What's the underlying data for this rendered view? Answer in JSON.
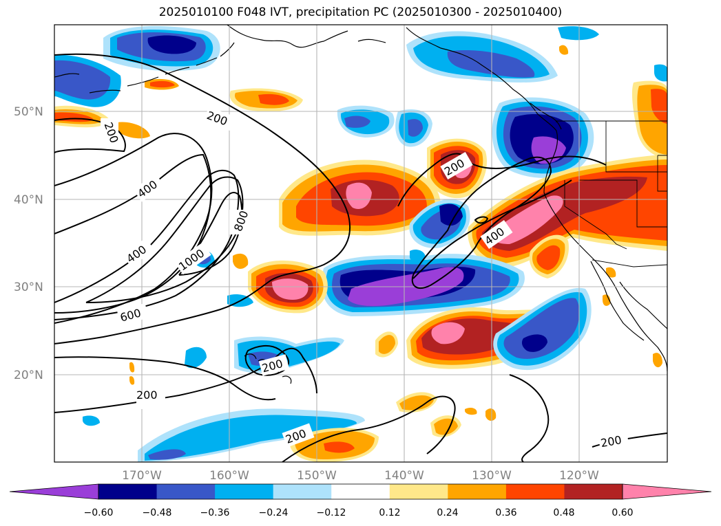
{
  "title": "2025010100 F048 IVT, precipitation PC (2025010300 - 2025010400)",
  "map": {
    "lat_labels": [
      "50°N",
      "40°N",
      "30°N",
      "20°N"
    ],
    "lon_labels": [
      "170°W",
      "160°W",
      "150°W",
      "140°W",
      "130°W",
      "120°W"
    ],
    "contour_labels": [
      "200",
      "200",
      "200",
      "400",
      "400",
      "600",
      "800",
      "1000",
      "200",
      "200",
      "200",
      "200",
      "400"
    ],
    "colors": {
      "neg_060": "#9a3ed8",
      "neg_048": "#00008b",
      "neg_036": "#3957c8",
      "neg_024": "#00b0f0",
      "neg_012": "#aee2fb",
      "pos_012": "#ffe88a",
      "pos_024": "#ffa500",
      "pos_036": "#ff4500",
      "pos_048": "#b22222",
      "pos_060": "#ff82ab"
    }
  },
  "colorbar": {
    "ticks": [
      "−0.60",
      "−0.48",
      "−0.36",
      "−0.24",
      "−0.12",
      "0.12",
      "0.24",
      "0.36",
      "0.48",
      "0.60"
    ],
    "colors": [
      "#9a3ed8",
      "#00008b",
      "#3957c8",
      "#00b0f0",
      "#aee2fb",
      "#ffffff",
      "#ffe88a",
      "#ffa500",
      "#ff4500",
      "#b22222",
      "#ff82ab"
    ]
  }
}
